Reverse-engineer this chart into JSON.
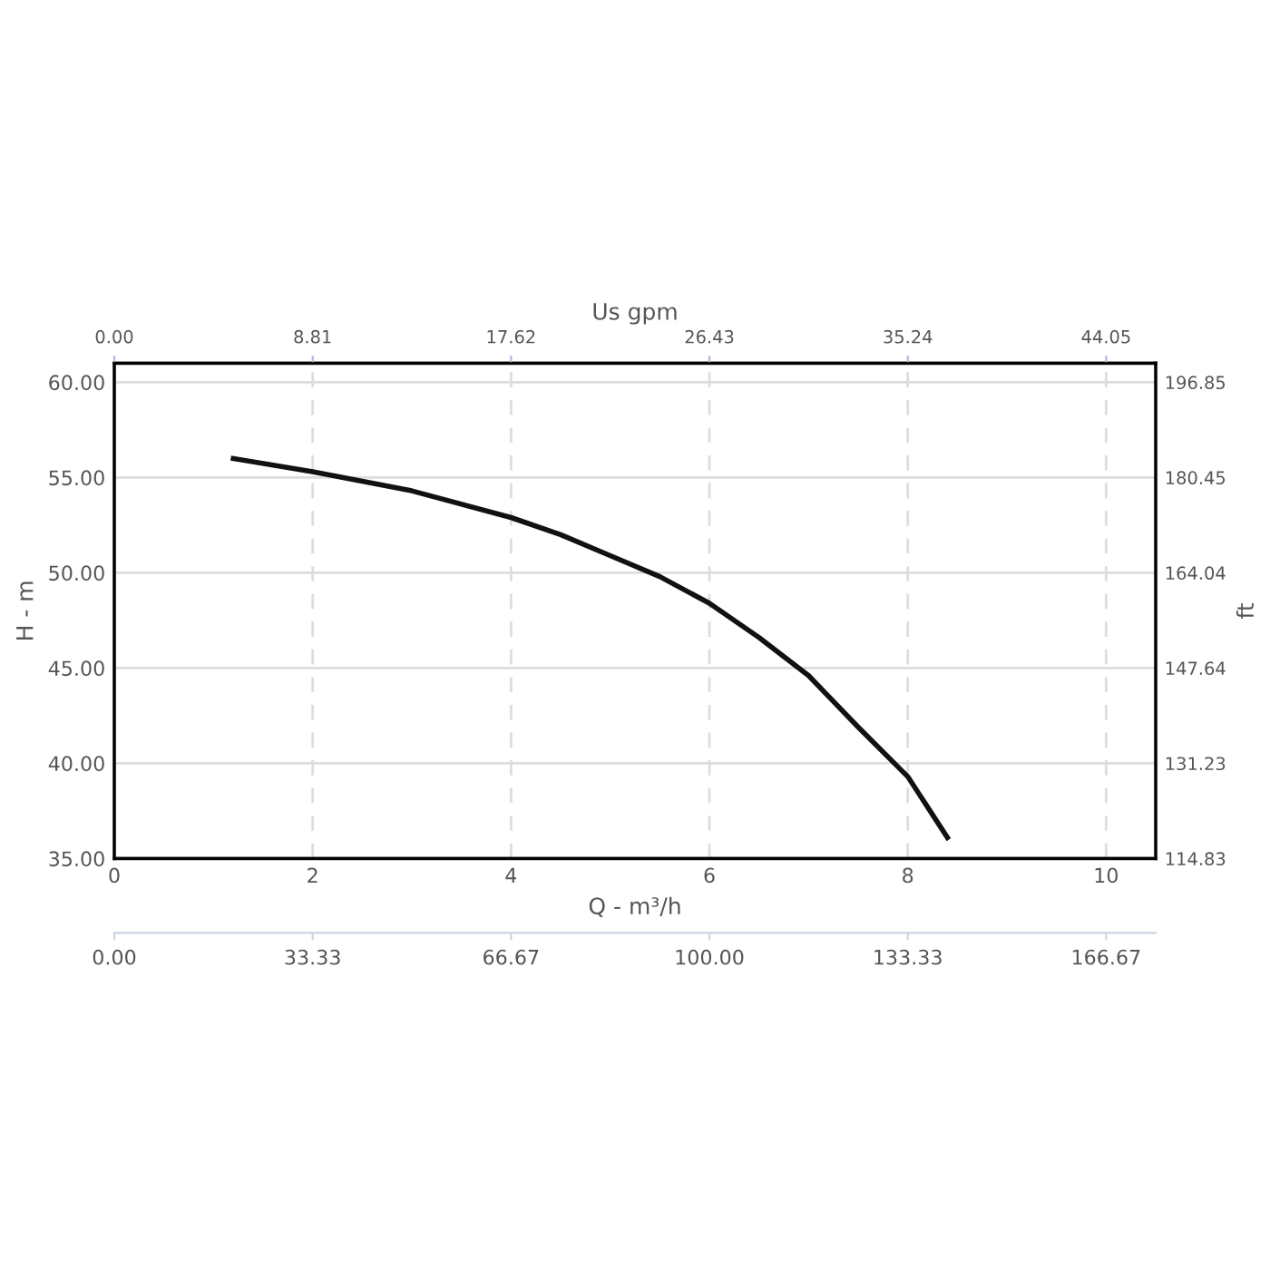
{
  "chart_data": {
    "type": "line",
    "xlabel": "Q - m³/h",
    "ylabel": "H - m",
    "y2label": "ft",
    "x2label": "Us gpm",
    "x": [
      1.2,
      2,
      3,
      4,
      4.5,
      5,
      5.5,
      6,
      6.5,
      7,
      7.5,
      8,
      8.4
    ],
    "series": [
      {
        "color": "#111111",
        "values": [
          56.0,
          55.3,
          54.3,
          52.9,
          52.0,
          50.9,
          49.8,
          48.4,
          46.6,
          44.6,
          41.9,
          39.3,
          36.1
        ]
      }
    ],
    "xlim": [
      0,
      10.5
    ],
    "xticks": [
      0,
      2,
      4,
      6,
      8,
      10
    ],
    "ylim": [
      35,
      61
    ],
    "yticks": [
      {
        "value": 35,
        "label": "35.00"
      },
      {
        "value": 40,
        "label": "40.00"
      },
      {
        "value": 45,
        "label": "45.00"
      },
      {
        "value": 50,
        "label": "50.00"
      },
      {
        "value": 55,
        "label": "55.00"
      },
      {
        "value": 60,
        "label": "60.00"
      }
    ],
    "y2lim": [
      114.83,
      200.13
    ],
    "y2ticks": [
      114.83,
      131.23,
      147.64,
      164.04,
      180.45,
      196.85
    ],
    "x2lim": [
      0,
      46.25
    ],
    "x2ticks": [
      {
        "value": 0,
        "label": "0.00"
      },
      8.81,
      17.62,
      26.43,
      35.24,
      44.05
    ],
    "annotations": [
      "0.00",
      "33.33",
      "66.67",
      "100.00",
      "133.33",
      "166.67"
    ],
    "grid": true,
    "legend": false,
    "marker": "none",
    "line_style": "solid"
  }
}
